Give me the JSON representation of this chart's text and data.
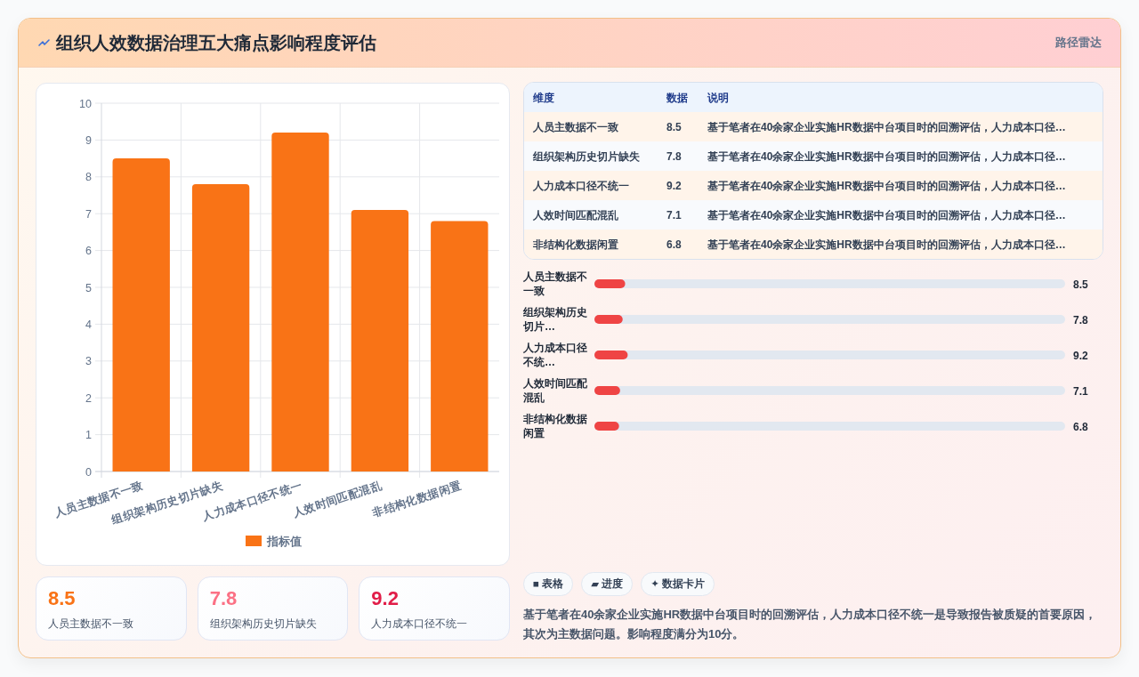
{
  "chart_data": [
    {
      "type": "bar",
      "title": "组织人效数据治理五大痛点影响程度评估",
      "annotations": [
        "路径雷达"
      ],
      "categories": [
        "人员主数据不一致",
        "组织架构历史切片缺失",
        "人力成本口径不统一",
        "人效时间匹配混乱",
        "非结构化数据闲置"
      ],
      "series": [
        {
          "name": "指标值",
          "color": "#f97316",
          "values": [
            8.5,
            7.8,
            9.2,
            7.1,
            6.8
          ]
        }
      ],
      "ylim": [
        0,
        10
      ],
      "yticks": [
        0,
        1,
        2,
        3,
        4,
        5,
        6,
        7,
        8,
        9,
        10
      ],
      "grid": true,
      "legend": "bottom"
    },
    {
      "type": "other",
      "categories": [
        "人员主数据不一致",
        "组织架构历史切片缺失",
        "人力成本口径不统一",
        "人效时间匹配混乱",
        "非结构化数据闲置"
      ],
      "values": [
        8.5,
        7.8,
        9.2,
        7.1,
        6.8
      ],
      "data_labels": true,
      "annotations": [
        "维度",
        "数据",
        "说明",
        "基于笔者在40余家企业实施HR数据中台项目时的回溯评估，人力成本口径…",
        "基于笔者在40余家企业实施HR数据中台项目时的回溯评估，人力成本口径…",
        "基于笔者在40余家企业实施HR数据中台项目时的回溯评估，人力成本口径…",
        "基于笔者在40余家企业实施HR数据中台项目时的回溯评估，人力成本口径…",
        "基于笔者在40余家企业实施HR数据中台项目时的回溯评估，人力成本口径…"
      ]
    },
    {
      "type": "bar",
      "orientation": "horizontal",
      "categories": [
        "人员主数据不一致",
        "组织架构历史切片…",
        "人力成本口径不统…",
        "人效时间匹配混乱",
        "非结构化数据闲置"
      ],
      "values": [
        8.5,
        7.8,
        9.2,
        7.1,
        6.8
      ],
      "color": "#ef4444",
      "xlim": [
        0,
        130
      ],
      "data_labels": true,
      "tick_labels": "y"
    },
    {
      "type": "other",
      "categories": [
        "人员主数据不一致",
        "组织架构历史切片缺失",
        "人力成本口径不统一"
      ],
      "values": [
        8.5,
        7.8,
        9.2
      ],
      "data_labels": true
    },
    {
      "type": "other",
      "annotations": [
        "■ 表格",
        "▰ 进度",
        "✦ 数据卡片",
        "基于笔者在40余家企业实施HR数据中台项目时的回溯评估，人力成本口径不统一是导致报告被质疑的首要原因，其次为主数据问题。影响程度满分为10分。"
      ]
    }
  ]
}
